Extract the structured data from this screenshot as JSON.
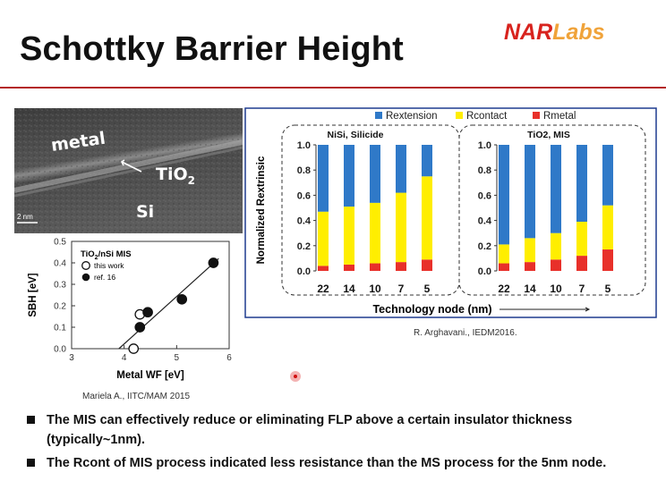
{
  "slide": {
    "title": "Schottky Barrier Height",
    "logo_main": "NAR",
    "logo_sub": "Labs",
    "left_caption": "Mariela A., IITC/MAM 2015",
    "right_caption": "R. Arghavani., IEDM2016.",
    "bullets": [
      "The MIS can effectively reduce or eliminating FLP above a certain insulator thickness (typically~1nm).",
      "The Rcont of MIS process indicated less resistance than the MS process for the 5nm node."
    ],
    "colors": {
      "accent": "#d8231e",
      "logo_labs": "#f0a33a",
      "rule": "#b42525",
      "chart_frame": "#1f3b8f"
    }
  },
  "tem": {
    "metal": "metal",
    "tio2_main": "TiO",
    "tio2_sub": "2",
    "si": "Si",
    "scale": "2 nm"
  },
  "chart_data": [
    {
      "type": "scatter",
      "title_main": "TiO",
      "title_sub": "2",
      "title_rest": "/nSi MIS",
      "xlabel": "Metal WF [eV]",
      "ylabel": "SBH [eV]",
      "xlim": [
        3,
        6
      ],
      "ylim": [
        0,
        0.5
      ],
      "xticks": [
        "3",
        "4",
        "5",
        "6"
      ],
      "yticks": [
        "0.0",
        "0.1",
        "0.2",
        "0.3",
        "0.4",
        "0.5"
      ],
      "legend": [
        "this work",
        "ref. 16"
      ],
      "series": [
        {
          "name": "this work",
          "points": [
            [
              4.18,
              0.0
            ],
            [
              4.3,
              0.16
            ]
          ]
        },
        {
          "name": "ref. 16",
          "points": [
            [
              4.3,
              0.1
            ],
            [
              4.45,
              0.17
            ],
            [
              5.1,
              0.23
            ],
            [
              5.7,
              0.4
            ]
          ]
        }
      ],
      "fit_line": [
        [
          3.9,
          0.0
        ],
        [
          5.8,
          0.42
        ]
      ]
    },
    {
      "type": "bar",
      "stacked": true,
      "xlabel": "Technology node (nm)",
      "ylabel": "Normalized Rextrinsic",
      "ylim": [
        0,
        1.0
      ],
      "yticks": [
        "0.0",
        "0.2",
        "0.4",
        "0.6",
        "0.8",
        "1.0"
      ],
      "legend_position": "top",
      "legend": [
        "Rextension",
        "Rcontact",
        "Rmetal"
      ],
      "colors": {
        "Rextension": "#2f79c8",
        "Rcontact": "#ffee00",
        "Rmetal": "#e8302a"
      },
      "groups": [
        {
          "label": "NiSi, Silicide",
          "categories": [
            "22",
            "14",
            "10",
            "7",
            "5"
          ],
          "series": [
            {
              "name": "Rmetal",
              "values": [
                0.04,
                0.05,
                0.06,
                0.07,
                0.09
              ]
            },
            {
              "name": "Rcontact",
              "values": [
                0.43,
                0.46,
                0.48,
                0.55,
                0.66
              ]
            },
            {
              "name": "Rextension",
              "values": [
                0.53,
                0.49,
                0.46,
                0.38,
                0.25
              ]
            }
          ]
        },
        {
          "label": "TiO2, MIS",
          "categories": [
            "22",
            "14",
            "10",
            "7",
            "5"
          ],
          "series": [
            {
              "name": "Rmetal",
              "values": [
                0.06,
                0.07,
                0.09,
                0.12,
                0.17
              ]
            },
            {
              "name": "Rcontact",
              "values": [
                0.15,
                0.19,
                0.21,
                0.27,
                0.35
              ]
            },
            {
              "name": "Rextension",
              "values": [
                0.79,
                0.74,
                0.7,
                0.61,
                0.48
              ]
            }
          ]
        }
      ]
    }
  ]
}
